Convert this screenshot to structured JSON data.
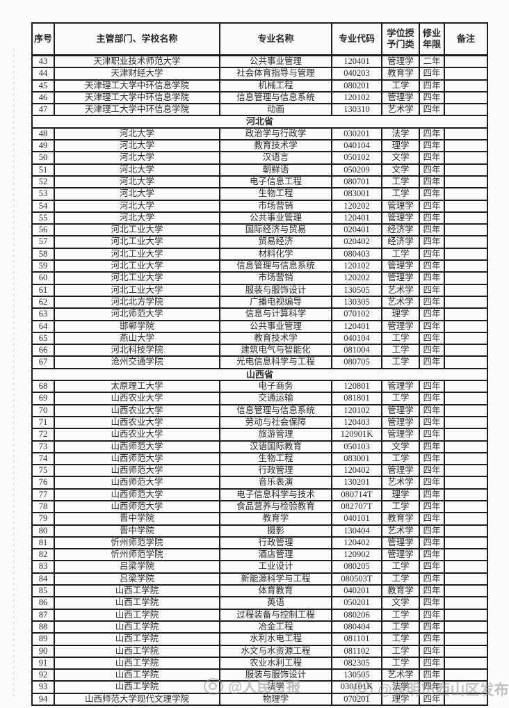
{
  "table": {
    "columns": [
      {
        "key": "no",
        "label": "序号"
      },
      {
        "key": "school",
        "label": "主管部门、学校名称"
      },
      {
        "key": "major",
        "label": "专业名称"
      },
      {
        "key": "code",
        "label": "专业代码"
      },
      {
        "key": "degree",
        "label": "学位授\n予门类"
      },
      {
        "key": "years",
        "label": "修业\n年限"
      },
      {
        "key": "note",
        "label": "备注"
      }
    ],
    "sections": [
      {
        "title": "",
        "rows": [
          [
            "43",
            "天津职业技术师范大学",
            "公共事业管理",
            "120401",
            "管理学",
            "二年",
            ""
          ],
          [
            "44",
            "天津财经大学",
            "社会体育指导与管理",
            "040203",
            "教育学",
            "四年",
            ""
          ],
          [
            "45",
            "天津理工大学中环信息学院",
            "机械工程",
            "080201",
            "工学",
            "四年",
            ""
          ],
          [
            "46",
            "天津理工大学中环信息学院",
            "信息管理与信息系统",
            "120102",
            "管理学",
            "四年",
            ""
          ],
          [
            "47",
            "天津理工大学中环信息学院",
            "动画",
            "130310",
            "艺术学",
            "四年",
            ""
          ]
        ]
      },
      {
        "title": "河北省",
        "rows": [
          [
            "48",
            "河北大学",
            "政治学与行政学",
            "030201",
            "法学",
            "四年",
            ""
          ],
          [
            "49",
            "河北大学",
            "教育技术学",
            "040104",
            "理学",
            "四年",
            ""
          ],
          [
            "50",
            "河北大学",
            "汉语言",
            "050102",
            "文学",
            "四年",
            ""
          ],
          [
            "51",
            "河北大学",
            "朝鲜语",
            "050209",
            "文学",
            "四年",
            ""
          ],
          [
            "52",
            "河北大学",
            "电子信息工程",
            "080701",
            "工学",
            "四年",
            ""
          ],
          [
            "53",
            "河北大学",
            "生物工程",
            "083001",
            "工学",
            "四年",
            ""
          ],
          [
            "54",
            "河北大学",
            "市场营销",
            "120202",
            "管理学",
            "四年",
            ""
          ],
          [
            "55",
            "河北大学",
            "公共事业管理",
            "120401",
            "管理学",
            "四年",
            ""
          ],
          [
            "56",
            "河北工业大学",
            "国际经济与贸易",
            "020401",
            "经济学",
            "四年",
            ""
          ],
          [
            "57",
            "河北工业大学",
            "贸易经济",
            "020402",
            "经济学",
            "四年",
            ""
          ],
          [
            "58",
            "河北工业大学",
            "材料化学",
            "080403",
            "工学",
            "四年",
            ""
          ],
          [
            "59",
            "河北工业大学",
            "信息管理与信息系统",
            "120102",
            "管理学",
            "四年",
            ""
          ],
          [
            "60",
            "河北工业大学",
            "市场营销",
            "120202",
            "管理学",
            "四年",
            ""
          ],
          [
            "61",
            "河北工业大学",
            "服装与服饰设计",
            "130505",
            "艺术学",
            "四年",
            ""
          ],
          [
            "62",
            "河北北方学院",
            "广播电视编导",
            "130305",
            "艺术学",
            "四年",
            ""
          ],
          [
            "63",
            "河北师范大学",
            "信息与计算科学",
            "070102",
            "理学",
            "四年",
            ""
          ],
          [
            "64",
            "邯郸学院",
            "公共事业管理",
            "120401",
            "管理学",
            "四年",
            ""
          ],
          [
            "65",
            "燕山大学",
            "教育技术学",
            "040104",
            "工学",
            "四年",
            ""
          ],
          [
            "66",
            "河北科技学院",
            "建筑电气与智能化",
            "081004",
            "工学",
            "四年",
            ""
          ],
          [
            "67",
            "沧州交通学院",
            "光电信息科学与工程",
            "080705",
            "工学",
            "四年",
            ""
          ]
        ]
      },
      {
        "title": "山西省",
        "rows": [
          [
            "68",
            "太原理工大学",
            "电子商务",
            "120801",
            "管理学",
            "四年",
            ""
          ],
          [
            "69",
            "山西农业大学",
            "交通运输",
            "081801",
            "工学",
            "四年",
            ""
          ],
          [
            "70",
            "山西农业大学",
            "信息管理与信息系统",
            "120102",
            "管理学",
            "四年",
            ""
          ],
          [
            "71",
            "山西农业大学",
            "劳动与社会保障",
            "120403",
            "管理学",
            "四年",
            ""
          ],
          [
            "72",
            "山西农业大学",
            "旅游管理",
            "120901K",
            "管理学",
            "四年",
            ""
          ],
          [
            "73",
            "山西师范大学",
            "汉语国际教育",
            "050103",
            "文学",
            "四年",
            ""
          ],
          [
            "74",
            "山西师范大学",
            "生物工程",
            "083001",
            "工学",
            "四年",
            ""
          ],
          [
            "75",
            "山西师范大学",
            "行政管理",
            "120402",
            "管理学",
            "四年",
            ""
          ],
          [
            "76",
            "山西师范大学",
            "音乐表演",
            "130201",
            "艺术学",
            "四年",
            ""
          ],
          [
            "77",
            "山西师范大学",
            "电子信息科学与技术",
            "080714T",
            "理学",
            "四年",
            ""
          ],
          [
            "78",
            "山西师范大学",
            "食品营养与检验教育",
            "082707T",
            "工学",
            "四年",
            ""
          ],
          [
            "79",
            "晋中学院",
            "教育学",
            "040101",
            "教育学",
            "四年",
            ""
          ],
          [
            "80",
            "晋中学院",
            "摄影",
            "130404",
            "艺术学",
            "四年",
            ""
          ],
          [
            "81",
            "忻州师范学院",
            "行政管理",
            "120402",
            "管理学",
            "四年",
            ""
          ],
          [
            "82",
            "忻州师范学院",
            "酒店管理",
            "120902",
            "管理学",
            "四年",
            ""
          ],
          [
            "83",
            "吕梁学院",
            "工业设计",
            "080205",
            "工学",
            "四年",
            ""
          ],
          [
            "84",
            "吕梁学院",
            "新能源科学与工程",
            "080503T",
            "工学",
            "四年",
            ""
          ],
          [
            "85",
            "山西工学院",
            "体育教育",
            "040201",
            "教育学",
            "四年",
            ""
          ],
          [
            "86",
            "山西工学院",
            "英语",
            "050201",
            "文学",
            "四年",
            ""
          ],
          [
            "87",
            "山西工学院",
            "过程装备与控制工程",
            "080206",
            "工学",
            "四年",
            ""
          ],
          [
            "88",
            "山西工学院",
            "冶金工程",
            "080404",
            "工学",
            "四年",
            ""
          ],
          [
            "89",
            "山西工学院",
            "水利水电工程",
            "081101",
            "工学",
            "四年",
            ""
          ],
          [
            "90",
            "山西工学院",
            "水文与水资源工程",
            "081102",
            "工学",
            "四年",
            ""
          ],
          [
            "91",
            "山西工学院",
            "农业水利工程",
            "082305",
            "工学",
            "四年",
            ""
          ],
          [
            "92",
            "山西工学院",
            "服装与服饰设计",
            "130505",
            "艺术学",
            "四年",
            ""
          ],
          [
            "93",
            "山西工学院",
            "法学",
            "030101K",
            "法学",
            "四年",
            ""
          ],
          [
            "94",
            "山西师范大学现代文理学院",
            "物理学",
            "070201",
            "理学",
            "四年",
            ""
          ]
        ]
      }
    ]
  },
  "watermarks": [
    {
      "icon": "weibo-icon",
      "text": "@人民日报"
    },
    {
      "icon": "weibo-icon",
      "text": "@昆明市西山区发布"
    }
  ],
  "colors": {
    "paper": "#fbfbf9",
    "border": "#1e1e1e",
    "text": "#2b2b2b",
    "watermark": "#8c8c8c"
  }
}
